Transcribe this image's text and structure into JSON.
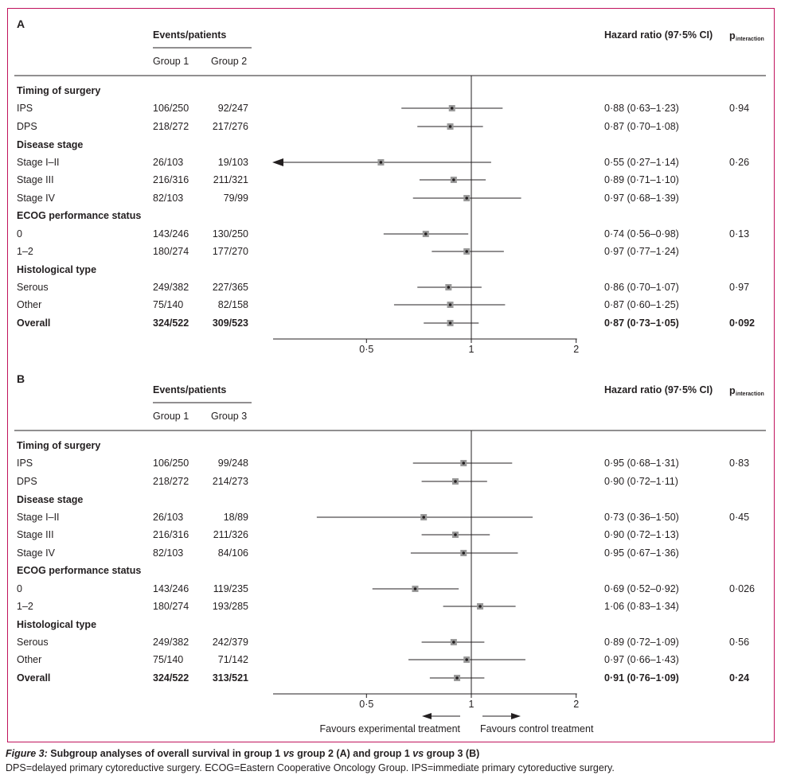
{
  "chart_data": [
    {
      "type": "forest",
      "panel_label": "A",
      "header": {
        "events_patients": "Events/patients",
        "group_a": "Group 1",
        "group_b": "Group 2",
        "hazard_ratio": "Hazard ratio (97·5% CI)",
        "p_main": "p",
        "p_sub": "interaction"
      },
      "rows": [
        {
          "kind": "header",
          "label": "Timing of surgery"
        },
        {
          "kind": "row",
          "label": "IPS",
          "ev_a": "106/250",
          "ev_b": "92/247",
          "hr": 0.88,
          "lo": 0.63,
          "hi": 1.23,
          "hr_text": "0·88 (0·63–1·23)",
          "p": "0·94"
        },
        {
          "kind": "row",
          "label": "DPS",
          "ev_a": "218/272",
          "ev_b": "217/276",
          "hr": 0.87,
          "lo": 0.7,
          "hi": 1.08,
          "hr_text": "0·87 (0·70–1·08)",
          "p": ""
        },
        {
          "kind": "header",
          "label": "Disease stage"
        },
        {
          "kind": "row",
          "label": "Stage I–II",
          "ev_a": "26/103",
          "ev_b": "19/103",
          "hr": 0.55,
          "lo": 0.27,
          "hi": 1.14,
          "hr_text": "0·55 (0·27–1·14)",
          "p": "0·26",
          "arrow_left": true
        },
        {
          "kind": "row",
          "label": "Stage III",
          "ev_a": "216/316",
          "ev_b": "211/321",
          "hr": 0.89,
          "lo": 0.71,
          "hi": 1.1,
          "hr_text": "0·89 (0·71–1·10)",
          "p": ""
        },
        {
          "kind": "row",
          "label": "Stage IV",
          "ev_a": "82/103",
          "ev_b": "79/99",
          "hr": 0.97,
          "lo": 0.68,
          "hi": 1.39,
          "hr_text": "0·97 (0·68–1·39)",
          "p": ""
        },
        {
          "kind": "header",
          "label": "ECOG performance status"
        },
        {
          "kind": "row",
          "label": "0",
          "ev_a": "143/246",
          "ev_b": "130/250",
          "hr": 0.74,
          "lo": 0.56,
          "hi": 0.98,
          "hr_text": "0·74 (0·56–0·98)",
          "p": "0·13"
        },
        {
          "kind": "row",
          "label": "1–2",
          "ev_a": "180/274",
          "ev_b": "177/270",
          "hr": 0.97,
          "lo": 0.77,
          "hi": 1.24,
          "hr_text": "0·97 (0·77–1·24)",
          "p": ""
        },
        {
          "kind": "header",
          "label": "Histological type"
        },
        {
          "kind": "row",
          "label": "Serous",
          "ev_a": "249/382",
          "ev_b": "227/365",
          "hr": 0.86,
          "lo": 0.7,
          "hi": 1.07,
          "hr_text": "0·86 (0·70–1·07)",
          "p": "0·97"
        },
        {
          "kind": "row",
          "label": "Other",
          "ev_a": "75/140",
          "ev_b": "82/158",
          "hr": 0.87,
          "lo": 0.6,
          "hi": 1.25,
          "hr_text": "0·87 (0·60–1·25)",
          "p": ""
        },
        {
          "kind": "row",
          "label": "Overall",
          "bold": true,
          "ev_a": "324/522",
          "ev_b": "309/523",
          "hr": 0.87,
          "lo": 0.73,
          "hi": 1.05,
          "hr_text": "0·87 (0·73–1·05)",
          "p": "0·092"
        }
      ],
      "axis": {
        "scale": "log",
        "ticks": [
          {
            "value": 0.5,
            "label": "0·5"
          },
          {
            "value": 1,
            "label": "1"
          },
          {
            "value": 2,
            "label": "2"
          }
        ],
        "reference": 1
      }
    },
    {
      "type": "forest",
      "panel_label": "B",
      "header": {
        "events_patients": "Events/patients",
        "group_a": "Group 1",
        "group_b": "Group 3",
        "hazard_ratio": "Hazard ratio (97·5% CI)",
        "p_main": "p",
        "p_sub": "interaction"
      },
      "rows": [
        {
          "kind": "header",
          "label": "Timing of surgery"
        },
        {
          "kind": "row",
          "label": "IPS",
          "ev_a": "106/250",
          "ev_b": "99/248",
          "hr": 0.95,
          "lo": 0.68,
          "hi": 1.31,
          "hr_text": "0·95 (0·68–1·31)",
          "p": "0·83"
        },
        {
          "kind": "row",
          "label": "DPS",
          "ev_a": "218/272",
          "ev_b": "214/273",
          "hr": 0.9,
          "lo": 0.72,
          "hi": 1.11,
          "hr_text": "0·90 (0·72–1·11)",
          "p": ""
        },
        {
          "kind": "header",
          "label": "Disease stage"
        },
        {
          "kind": "row",
          "label": "Stage I–II",
          "ev_a": "26/103",
          "ev_b": "18/89",
          "hr": 0.73,
          "lo": 0.36,
          "hi": 1.5,
          "hr_text": "0·73 (0·36–1·50)",
          "p": "0·45"
        },
        {
          "kind": "row",
          "label": "Stage III",
          "ev_a": "216/316",
          "ev_b": "211/326",
          "hr": 0.9,
          "lo": 0.72,
          "hi": 1.13,
          "hr_text": "0·90 (0·72–1·13)",
          "p": ""
        },
        {
          "kind": "row",
          "label": "Stage IV",
          "ev_a": "82/103",
          "ev_b": "84/106",
          "hr": 0.95,
          "lo": 0.67,
          "hi": 1.36,
          "hr_text": "0·95 (0·67–1·36)",
          "p": ""
        },
        {
          "kind": "header",
          "label": "ECOG performance status"
        },
        {
          "kind": "row",
          "label": "0",
          "ev_a": "143/246",
          "ev_b": "119/235",
          "hr": 0.69,
          "lo": 0.52,
          "hi": 0.92,
          "hr_text": "0·69 (0·52–0·92)",
          "p": "0·026"
        },
        {
          "kind": "row",
          "label": "1–2",
          "ev_a": "180/274",
          "ev_b": "193/285",
          "hr": 1.06,
          "lo": 0.83,
          "hi": 1.34,
          "hr_text": "1·06 (0·83–1·34)",
          "p": ""
        },
        {
          "kind": "header",
          "label": "Histological type"
        },
        {
          "kind": "row",
          "label": "Serous",
          "ev_a": "249/382",
          "ev_b": "242/379",
          "hr": 0.89,
          "lo": 0.72,
          "hi": 1.09,
          "hr_text": "0·89 (0·72–1·09)",
          "p": "0·56"
        },
        {
          "kind": "row",
          "label": "Other",
          "ev_a": "75/140",
          "ev_b": "71/142",
          "hr": 0.97,
          "lo": 0.66,
          "hi": 1.43,
          "hr_text": "0·97 (0·66–1·43)",
          "p": ""
        },
        {
          "kind": "row",
          "label": "Overall",
          "bold": true,
          "ev_a": "324/522",
          "ev_b": "313/521",
          "hr": 0.91,
          "lo": 0.76,
          "hi": 1.09,
          "hr_text": "0·91 (0·76–1·09)",
          "p": "0·24"
        }
      ],
      "axis": {
        "scale": "log",
        "ticks": [
          {
            "value": 0.5,
            "label": "0·5"
          },
          {
            "value": 1,
            "label": "1"
          },
          {
            "value": 2,
            "label": "2"
          }
        ],
        "reference": 1
      },
      "favours": {
        "left": "Favours experimental treatment",
        "right": "Favours control treatment"
      }
    }
  ],
  "caption": {
    "figure_label": "Figure 3:",
    "title_1": "Subgroup analyses of overall survival in group 1 ",
    "vs_1": "vs",
    "title_2": " group 2 (A) and group 1 ",
    "vs_2": "vs",
    "title_3": " group 3 (B)",
    "abbreviations": "DPS=delayed primary cytoreductive surgery. ECOG=Eastern Cooperative Oncology Group. IPS=immediate primary cytoreductive surgery."
  },
  "colors": {
    "frame": "#c0125c",
    "text": "#231f20",
    "marker_fill": "#9a9a9a",
    "marker_dot": "#231f20"
  }
}
